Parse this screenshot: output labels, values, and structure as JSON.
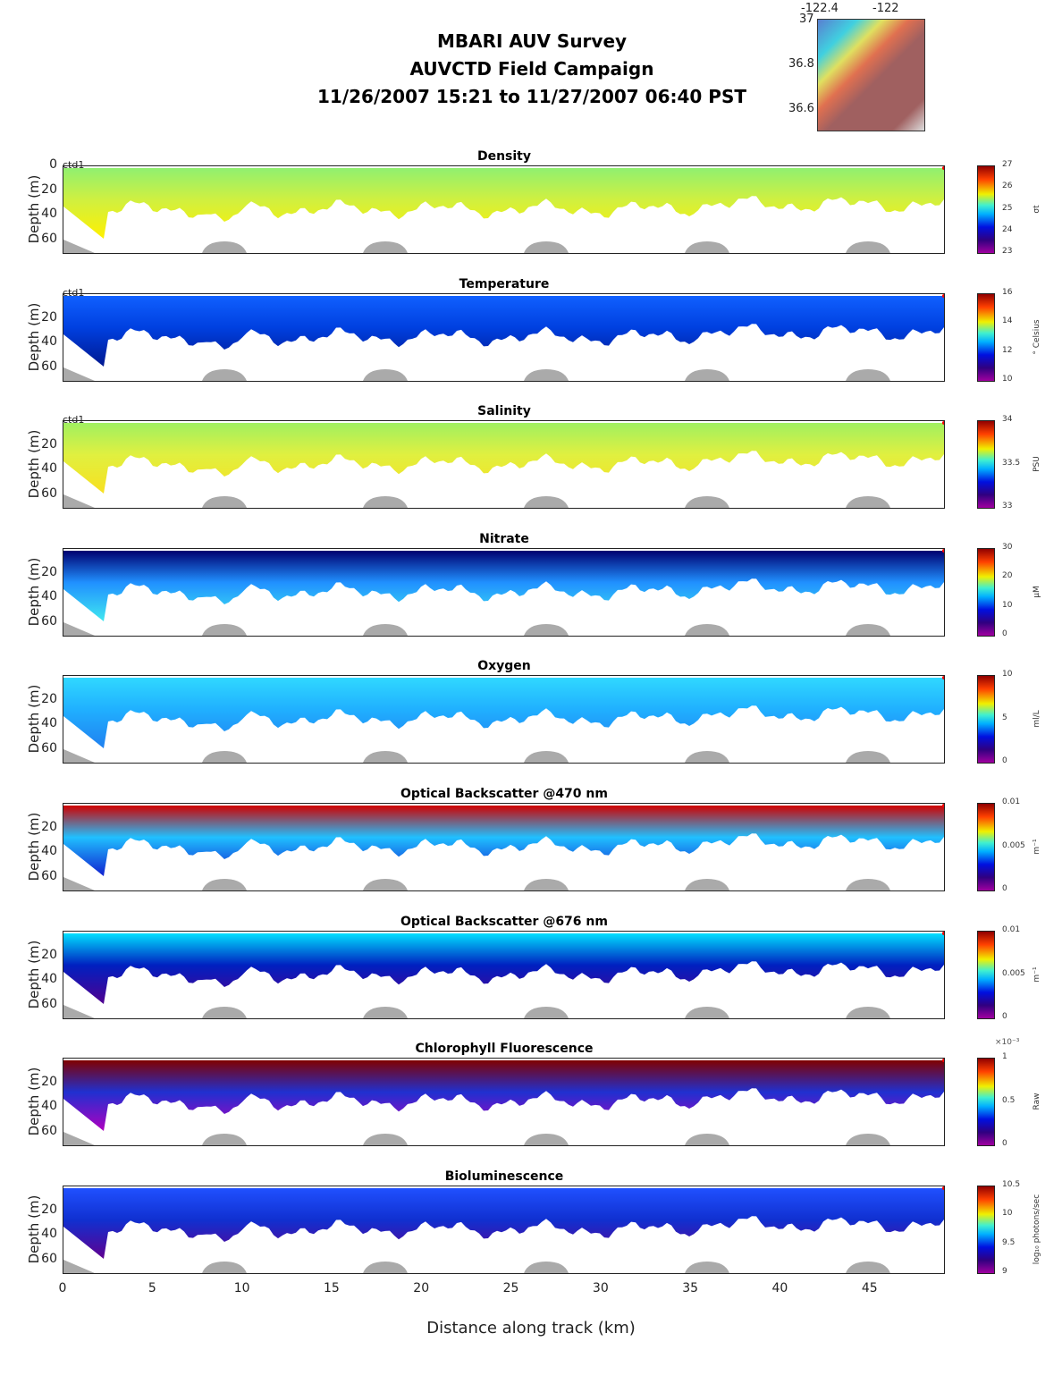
{
  "header": {
    "title_lines": [
      "MBARI AUV Survey",
      "AUVCTD Field Campaign",
      "11/26/2007 15:21  to 11/27/2007 06:40 PST"
    ]
  },
  "map": {
    "lon_ticks": [
      "-122.4",
      "-122"
    ],
    "lat_ticks": [
      "37",
      "36.8",
      "36.6"
    ]
  },
  "chart_data": {
    "type": "heatmap",
    "xlabel": "Distance along track (km)",
    "xlim": [
      0,
      49.2
    ],
    "x_ticks": [
      "0",
      "5",
      "10",
      "15",
      "20",
      "25",
      "30",
      "35",
      "40",
      "45"
    ],
    "ylabel": "Depth (m)",
    "ylim": [
      0,
      72
    ],
    "colorbar_exponent": "×10⁻³",
    "panels": [
      {
        "title": "Density",
        "ctd": "ctd1",
        "yticks": [
          "0",
          "20",
          "40",
          "60"
        ],
        "unit": "σt",
        "cticks": [
          "27",
          "26",
          "25",
          "24",
          "23"
        ],
        "colors": [
          "#90f070",
          "#d0f040",
          "#fff000"
        ]
      },
      {
        "title": "Temperature",
        "ctd": "ctd1",
        "yticks": [
          "20",
          "40",
          "60"
        ],
        "unit": "° Celsius",
        "cticks": [
          "16",
          "14",
          "12",
          "10"
        ],
        "colors": [
          "#1060ff",
          "#0040e0",
          "#001890"
        ]
      },
      {
        "title": "Salinity",
        "ctd": "ctd1",
        "yticks": [
          "20",
          "40",
          "60"
        ],
        "unit": "PSU",
        "cticks": [
          "34",
          "33.5",
          "33"
        ],
        "colors": [
          "#a0f060",
          "#e0f040",
          "#f8e020"
        ]
      },
      {
        "title": "Nitrate",
        "ctd": "",
        "yticks": [
          "20",
          "40",
          "60"
        ],
        "unit": "μM",
        "cticks": [
          "30",
          "20",
          "10",
          "0"
        ],
        "colors": [
          "#000070",
          "#2090ff",
          "#40e8f0"
        ]
      },
      {
        "title": "Oxygen",
        "ctd": "",
        "yticks": [
          "20",
          "40",
          "60"
        ],
        "unit": "ml/L",
        "cticks": [
          "10",
          "5",
          "0"
        ],
        "colors": [
          "#30d8ff",
          "#20b0ff",
          "#2080f0"
        ]
      },
      {
        "title": "Optical Backscatter @470 nm",
        "ctd": "",
        "yticks": [
          "20",
          "40",
          "60"
        ],
        "unit": "m⁻¹",
        "cticks": [
          "0.01",
          "0.005",
          "0"
        ],
        "colors": [
          "#d00000",
          "#20c0ff",
          "#1020d0"
        ]
      },
      {
        "title": "Optical Backscatter @676 nm",
        "ctd": "",
        "yticks": [
          "20",
          "40",
          "60"
        ],
        "unit": "m⁻¹",
        "cticks": [
          "0.01",
          "0.005",
          "0"
        ],
        "colors": [
          "#00e0ff",
          "#0020c0",
          "#500090"
        ]
      },
      {
        "title": "Chlorophyll Fluorescence",
        "ctd": "",
        "yticks": [
          "20",
          "40",
          "60"
        ],
        "unit": "Raw",
        "cticks": [
          "1",
          "0.5",
          "0"
        ],
        "colors": [
          "#800000",
          "#2030d0",
          "#b000c0"
        ]
      },
      {
        "title": "Bioluminescence",
        "ctd": "",
        "yticks": [
          "20",
          "40",
          "60"
        ],
        "unit": "log₁₀ photons/sec",
        "cticks": [
          "10.5",
          "10",
          "9.5",
          "9"
        ],
        "colors": [
          "#2050ff",
          "#1030d0",
          "#600090"
        ]
      }
    ]
  }
}
